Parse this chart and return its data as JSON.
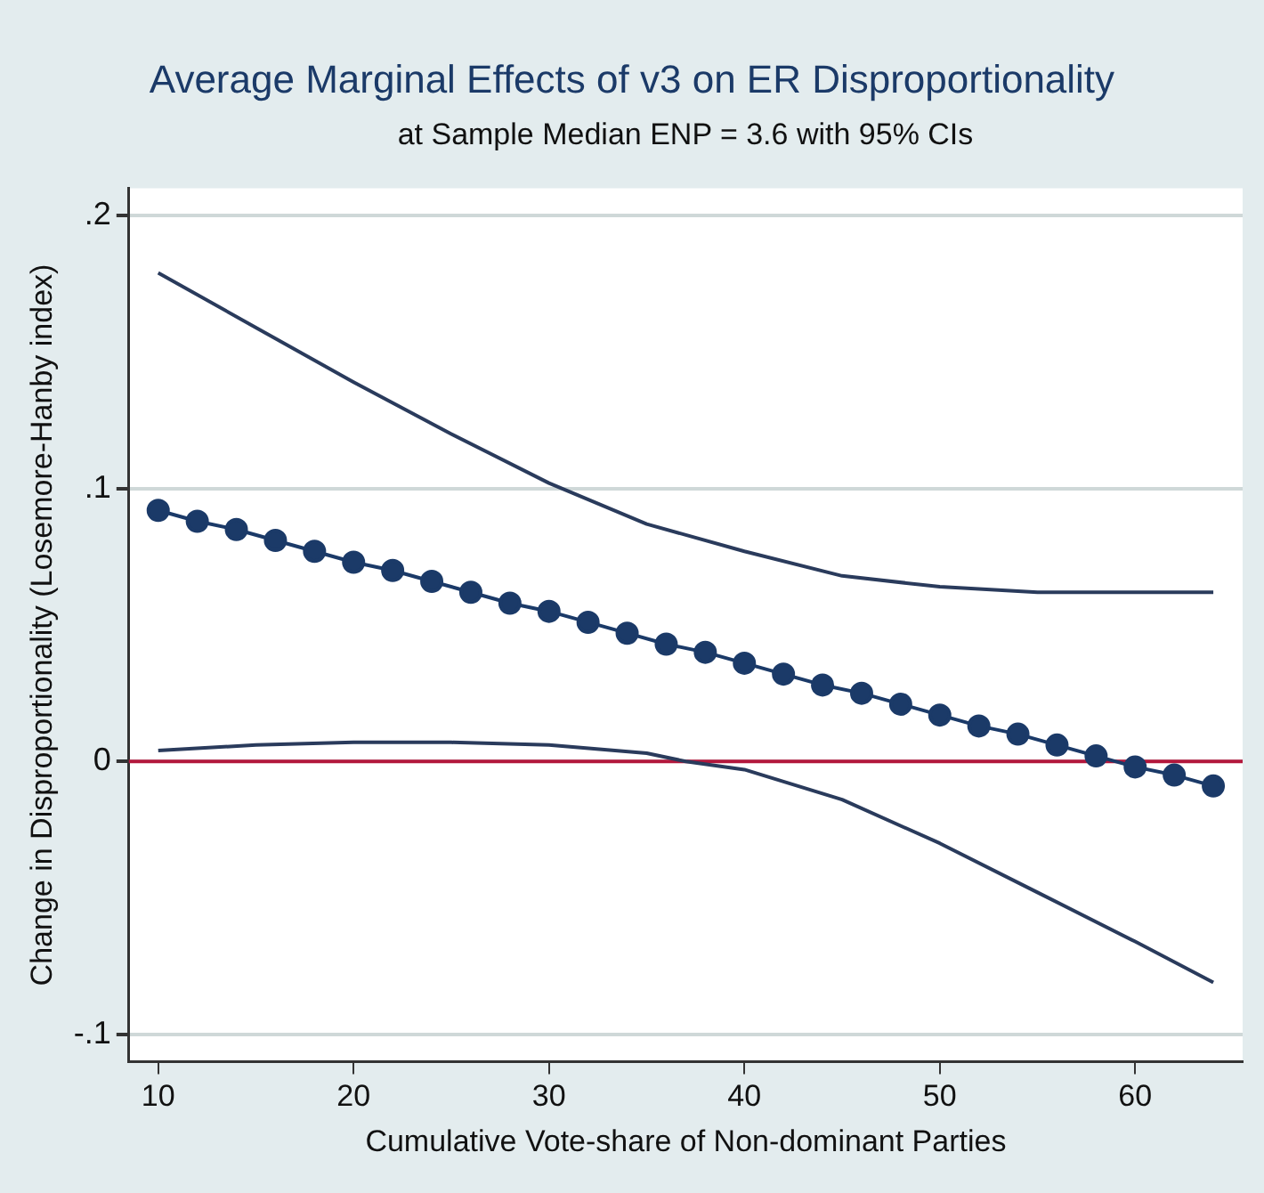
{
  "chart_data": {
    "type": "line",
    "title": "Average Marginal Effects of v3 on ER Disproportionality",
    "subtitle": "at Sample Median ENP = 3.6 with 95% CIs",
    "xlabel": "Cumulative Vote-share of Non-dominant Parties",
    "ylabel": "Change in Disproportionality (Losemore-Hanby index)",
    "xlim": [
      8.5,
      65.5
    ],
    "xticks": [
      10,
      20,
      30,
      40,
      50,
      60
    ],
    "ylim": [
      -0.11,
      0.21
    ],
    "yticks": [
      {
        "value": -0.1,
        "label": "-.1"
      },
      {
        "value": 0,
        "label": "0"
      },
      {
        "value": 0.1,
        "label": ".1"
      },
      {
        "value": 0.2,
        "label": ".2"
      }
    ],
    "grid": "y",
    "legend": false,
    "series": [
      {
        "color": "#1b3a68",
        "marker": "circle",
        "x": [
          10,
          12,
          14,
          16,
          18,
          20,
          22,
          24,
          26,
          28,
          30,
          32,
          34,
          36,
          38,
          40,
          42,
          44,
          46,
          48,
          50,
          52,
          54,
          56,
          58,
          60,
          62,
          64
        ],
        "values": [
          0.092,
          0.088,
          0.085,
          0.081,
          0.077,
          0.073,
          0.07,
          0.066,
          0.062,
          0.058,
          0.055,
          0.051,
          0.047,
          0.043,
          0.04,
          0.036,
          0.032,
          0.028,
          0.025,
          0.021,
          0.017,
          0.013,
          0.01,
          0.006,
          0.002,
          -0.002,
          -0.005,
          -0.009
        ]
      },
      {
        "color": "#2a3b5c",
        "marker": "none",
        "x": [
          10,
          15,
          20,
          25,
          30,
          35,
          40,
          45,
          50,
          55,
          60,
          64
        ],
        "values": [
          0.179,
          0.159,
          0.139,
          0.12,
          0.102,
          0.087,
          0.077,
          0.068,
          0.064,
          0.062,
          0.062,
          0.062
        ]
      },
      {
        "color": "#2a3b5c",
        "marker": "none",
        "x": [
          10,
          15,
          20,
          25,
          30,
          35,
          37,
          40,
          45,
          50,
          55,
          60,
          64
        ],
        "values": [
          0.004,
          0.006,
          0.007,
          0.007,
          0.006,
          0.003,
          0.0,
          -0.003,
          -0.014,
          -0.03,
          -0.048,
          -0.066,
          -0.081
        ]
      }
    ],
    "ref_lines": [
      {
        "axis": "y",
        "value": 0,
        "color": "#b3173c"
      }
    ]
  }
}
